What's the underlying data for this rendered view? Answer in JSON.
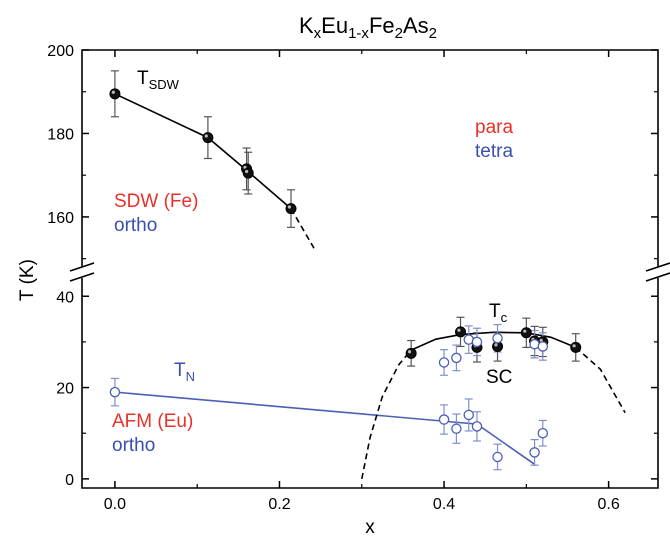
{
  "chart_data": {
    "type": "scatter",
    "title": {
      "base": "K",
      "s1": "x",
      "mid": "Eu",
      "s2": "1-x",
      "fe": "Fe",
      "s3": "2",
      "as": "As",
      "s4": "2"
    },
    "xlabel": "x",
    "ylabel": "T (K)",
    "xlim": [
      -0.04,
      0.66
    ],
    "ylim_lower": [
      -2,
      44
    ],
    "ylim_upper": [
      148,
      200
    ],
    "axis_break": "between 44 and 148 K",
    "x_ticks": [
      "0.0",
      "0.2",
      "0.4",
      "0.6"
    ],
    "y_ticks_lower": [
      "0",
      "20",
      "40"
    ],
    "y_ticks_upper": [
      "160",
      "180",
      "200"
    ],
    "series": [
      {
        "name": "T_SDW",
        "marker": "filled-circle",
        "color": "#000000",
        "points": [
          {
            "x": 0.0,
            "y": 189.5,
            "err": 5.5
          },
          {
            "x": 0.113,
            "y": 179,
            "err": 5
          },
          {
            "x": 0.16,
            "y": 171.5,
            "err": 5
          },
          {
            "x": 0.162,
            "y": 170.5,
            "err": 5
          },
          {
            "x": 0.214,
            "y": 162,
            "err": 4.5
          }
        ]
      },
      {
        "name": "T_c",
        "marker": "filled-circle",
        "color": "#000000",
        "points": [
          {
            "x": 0.36,
            "y": 27.5,
            "err": 2.8
          },
          {
            "x": 0.42,
            "y": 32.2,
            "err": 3.2
          },
          {
            "x": 0.44,
            "y": 28.8,
            "err": 3.2
          },
          {
            "x": 0.465,
            "y": 29,
            "err": 3.2
          },
          {
            "x": 0.5,
            "y": 32,
            "err": 3.2
          },
          {
            "x": 0.51,
            "y": 30.2,
            "err": 3.2
          },
          {
            "x": 0.52,
            "y": 30,
            "err": 3.2
          },
          {
            "x": 0.56,
            "y": 28.8,
            "err": 3
          }
        ]
      },
      {
        "name": "T_c (open)",
        "marker": "open-circle",
        "color": "#4a5fb5",
        "points": [
          {
            "x": 0.4,
            "y": 25.5,
            "err": 2.8
          },
          {
            "x": 0.415,
            "y": 26.5,
            "err": 2.8
          },
          {
            "x": 0.43,
            "y": 30.5,
            "err": 3
          },
          {
            "x": 0.44,
            "y": 30,
            "err": 3
          },
          {
            "x": 0.465,
            "y": 30.8,
            "err": 3
          },
          {
            "x": 0.51,
            "y": 29.5,
            "err": 3
          },
          {
            "x": 0.52,
            "y": 29,
            "err": 3
          }
        ]
      },
      {
        "name": "T_N",
        "marker": "open-circle",
        "color": "#4a5fb5",
        "points": [
          {
            "x": 0.0,
            "y": 19,
            "err": 3
          },
          {
            "x": 0.4,
            "y": 13,
            "err": 3.2
          },
          {
            "x": 0.415,
            "y": 11,
            "err": 3.2
          },
          {
            "x": 0.43,
            "y": 14,
            "err": 3.5
          },
          {
            "x": 0.44,
            "y": 11.5,
            "err": 3.2
          },
          {
            "x": 0.465,
            "y": 4.8,
            "err": 2.8
          },
          {
            "x": 0.51,
            "y": 5.8,
            "err": 2.8
          },
          {
            "x": 0.52,
            "y": 10,
            "err": 2.8
          }
        ]
      }
    ],
    "lines": [
      {
        "name": "T_SDW",
        "style": "solid",
        "color": "#000000",
        "points": [
          [
            0.0,
            189.5
          ],
          [
            0.113,
            179
          ],
          [
            0.161,
            171
          ],
          [
            0.214,
            162
          ]
        ]
      },
      {
        "name": "T_SDW extrapolation",
        "style": "dashed",
        "color": "#000000",
        "points": [
          [
            0.214,
            162
          ],
          [
            0.242,
            152.5
          ]
        ]
      },
      {
        "name": "T_N",
        "style": "solid",
        "color": "#4a5fb5",
        "points": [
          [
            0.0,
            19
          ],
          [
            0.44,
            12
          ],
          [
            0.51,
            3.2
          ]
        ]
      },
      {
        "name": "T_c dome",
        "style": "solid",
        "color": "#000000",
        "points": [
          [
            0.36,
            28.2
          ],
          [
            0.39,
            30.6
          ],
          [
            0.42,
            31.6
          ],
          [
            0.46,
            32.1
          ],
          [
            0.5,
            32
          ],
          [
            0.53,
            31
          ],
          [
            0.56,
            28.8
          ]
        ]
      },
      {
        "name": "T_c dome left",
        "style": "dashed",
        "color": "#000000",
        "points": [
          [
            0.3,
            0
          ],
          [
            0.31,
            9
          ],
          [
            0.325,
            18
          ],
          [
            0.345,
            25
          ],
          [
            0.36,
            28.2
          ]
        ]
      },
      {
        "name": "T_c dome right",
        "style": "dashed",
        "color": "#000000",
        "points": [
          [
            0.56,
            28.8
          ],
          [
            0.59,
            24
          ],
          [
            0.62,
            14.5
          ]
        ]
      }
    ],
    "annotations": {
      "tsdw": {
        "main": "T",
        "sub": "SDW",
        "color": "#000000"
      },
      "tc": {
        "main": "T",
        "sub": "c",
        "color": "#000000"
      },
      "tn": {
        "main": "T",
        "sub": "N",
        "color": "#3a4fb0"
      },
      "para": {
        "text": "para",
        "color": "#e8312a"
      },
      "tetra": {
        "text": "tetra",
        "color": "#3a4fb0"
      },
      "sdw_fe": {
        "text": "SDW (Fe)",
        "color": "#e8312a"
      },
      "ortho_upper": {
        "text": "ortho",
        "color": "#3a4fb0"
      },
      "afm_eu": {
        "text": "AFM (Eu)",
        "color": "#e8312a"
      },
      "ortho_lower": {
        "text": "ortho",
        "color": "#3a4fb0"
      },
      "sc": {
        "text": "SC",
        "color": "#000000"
      }
    }
  }
}
